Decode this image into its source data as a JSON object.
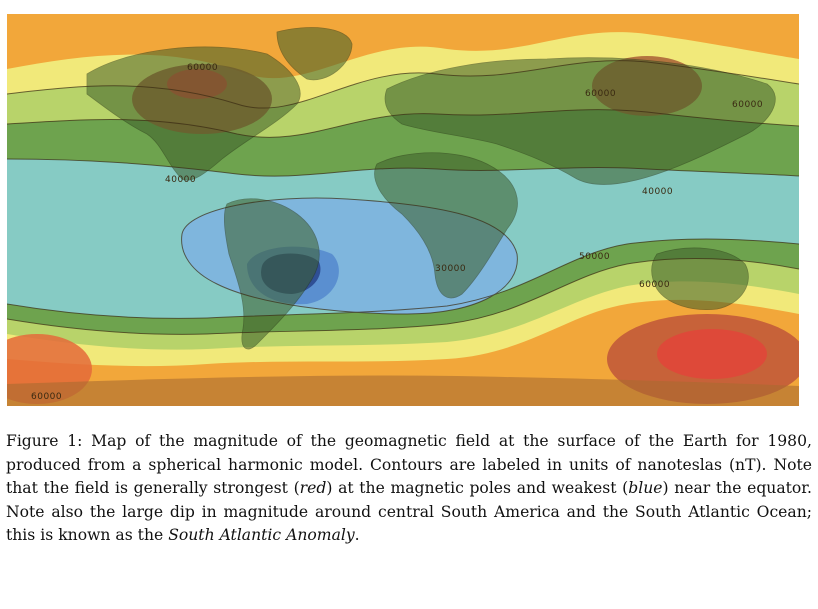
{
  "figure": {
    "contour_labels": [
      "60000",
      "60000",
      "40000",
      "40000",
      "30000",
      "50000",
      "60000",
      "60000",
      "60000"
    ],
    "colors": {
      "ocean_far": "#f2a73a",
      "yellow": "#f1e97a",
      "light_green": "#b8d36a",
      "mid_green": "#6ea34e",
      "dark_green": "#4f8a45",
      "cyan": "#86cbc4",
      "blue_light": "#7fb6dd",
      "blue_mid": "#5a8fd0",
      "blue_dark": "#2f4f95",
      "red": "#e0473a",
      "land_overlay": "#3d5f2a"
    }
  },
  "caption": {
    "label": "Figure 1:",
    "text_a": "Map of the magnitude of the geomagnetic field at the surface of the Earth for 1980, produced from a spherical harmonic model. Contours are labeled in units of nanoteslas (nT). Note that the field is generally strongest ",
    "red_word": "red",
    "text_b": " at the magnetic poles and weakest ",
    "blue_word": "blue",
    "text_c": " near the equator. Note also the large dip in magnitude around central South America and the South Atlantic Ocean; this is known as the ",
    "anomaly_name": "South Atlantic Anomaly",
    "text_d": "."
  }
}
